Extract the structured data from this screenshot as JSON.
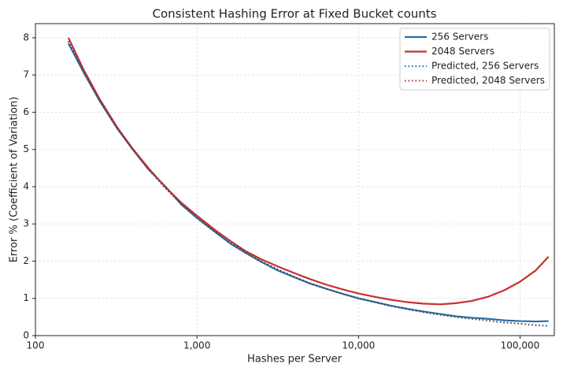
{
  "chart_data": {
    "type": "line",
    "title": "Consistent Hashing Error at Fixed Bucket counts",
    "x_label": "Hashes per Server",
    "y_label": "Error % (Coefficient of Variation)",
    "log_x": true,
    "grid": true,
    "legend": "upper right",
    "x": [
      160,
      200,
      250,
      320,
      400,
      500,
      640,
      800,
      1000,
      1300,
      1600,
      2000,
      2500,
      3200,
      4000,
      5000,
      6400,
      8000,
      10000,
      13000,
      16000,
      20000,
      25000,
      32000,
      40000,
      50000,
      64000,
      80000,
      100000,
      125000,
      150000
    ],
    "series": [
      {
        "name": "256 Servers",
        "color": "#2b6ca3",
        "style": "solid",
        "values": [
          7.85,
          7.05,
          6.3,
          5.57,
          5.0,
          4.47,
          4.0,
          3.52,
          3.16,
          2.78,
          2.48,
          2.22,
          1.98,
          1.74,
          1.57,
          1.4,
          1.25,
          1.12,
          1.0,
          0.89,
          0.8,
          0.72,
          0.65,
          0.58,
          0.52,
          0.48,
          0.45,
          0.41,
          0.39,
          0.38,
          0.39
        ]
      },
      {
        "name": "2048 Servers",
        "color": "#c8302c",
        "style": "solid",
        "values": [
          8.0,
          7.12,
          6.35,
          5.6,
          5.02,
          4.5,
          3.98,
          3.57,
          3.22,
          2.83,
          2.55,
          2.27,
          2.05,
          1.85,
          1.68,
          1.52,
          1.36,
          1.24,
          1.13,
          1.03,
          0.96,
          0.9,
          0.86,
          0.84,
          0.87,
          0.93,
          1.05,
          1.22,
          1.45,
          1.75,
          2.12
        ]
      },
      {
        "name": "Predicted, 256 Servers",
        "color": "#2b6ca3",
        "style": "dotted",
        "values": [
          7.91,
          7.07,
          6.32,
          5.59,
          5.0,
          4.47,
          3.95,
          3.54,
          3.16,
          2.77,
          2.5,
          2.24,
          2.0,
          1.77,
          1.58,
          1.41,
          1.25,
          1.12,
          1.0,
          0.88,
          0.79,
          0.71,
          0.63,
          0.56,
          0.5,
          0.45,
          0.4,
          0.35,
          0.32,
          0.28,
          0.26
        ]
      },
      {
        "name": "Predicted, 2048 Servers",
        "color": "#c8302c",
        "style": "dotted",
        "values": [
          7.91,
          7.07,
          6.32,
          5.59,
          5.0,
          4.47,
          3.95,
          3.54,
          3.16,
          2.77,
          2.5,
          2.24,
          2.0,
          1.77,
          1.58,
          1.41,
          1.25,
          1.12,
          1.0,
          0.88,
          0.79,
          0.71,
          0.63,
          0.56,
          0.5,
          0.45,
          0.4,
          0.35,
          0.32,
          0.28,
          0.26
        ]
      }
    ],
    "xlim": [
      100,
      163000
    ],
    "xticks": [
      100,
      {
        "value": 1000,
        "label": "1,000"
      },
      {
        "value": 10000,
        "label": "10,000"
      },
      {
        "value": 100000,
        "label": "100,000"
      }
    ],
    "ylim": [
      0,
      8.38
    ],
    "yticks": [
      0,
      1,
      2,
      3,
      4,
      5,
      6,
      7,
      8
    ]
  }
}
